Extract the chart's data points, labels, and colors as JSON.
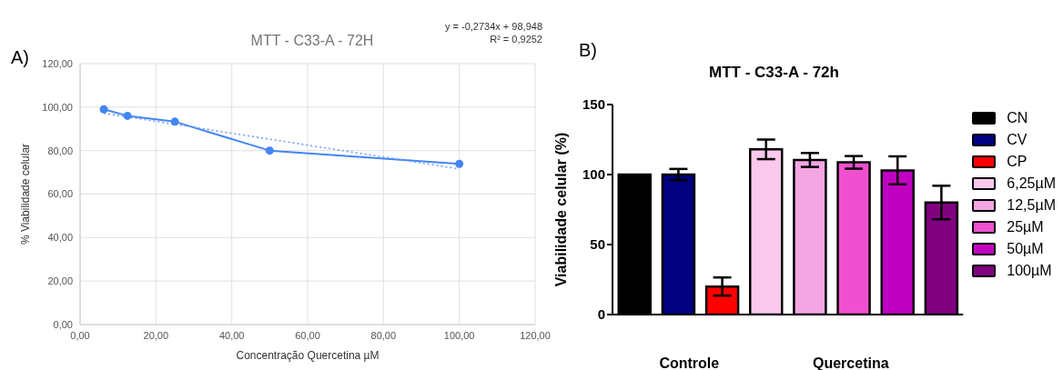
{
  "chart_data": [
    {
      "type": "line",
      "title": "MTT - C33-A - 72H",
      "xlabel": "Concentração Quercetina µM",
      "ylabel": "% Viabilidade celular",
      "annotations": [
        "A)",
        "y = -0,2734x + 98,948",
        "R² = 0,9252"
      ],
      "xlim": [
        0,
        120
      ],
      "ylim": [
        0,
        120
      ],
      "xticks": [
        {
          "value": 0,
          "label": "0,00"
        },
        {
          "value": 20,
          "label": "20,00"
        },
        {
          "value": 40,
          "label": "40,00"
        },
        {
          "value": 60,
          "label": "60,00"
        },
        {
          "value": 80,
          "label": "80,00"
        },
        {
          "value": 100,
          "label": "100,00"
        },
        {
          "value": 120,
          "label": "120,00"
        }
      ],
      "yticks": [
        {
          "value": 0,
          "label": "0,00"
        },
        {
          "value": 20,
          "label": "20,00"
        },
        {
          "value": 40,
          "label": "40,00"
        },
        {
          "value": 60,
          "label": "60,00"
        },
        {
          "value": 80,
          "label": "80,00"
        },
        {
          "value": 100,
          "label": "100,00"
        },
        {
          "value": 120,
          "label": "120,00"
        }
      ],
      "grid": true,
      "legend": false,
      "series": [
        {
          "color": "#4285f4",
          "x": [
            6.25,
            12.5,
            25,
            50,
            100
          ],
          "values": [
            99,
            96,
            93.3,
            80,
            73.9
          ],
          "marker": "circle",
          "line_style": "solid"
        },
        {
          "color": "#6d9ef8",
          "x": [
            6.25,
            100
          ],
          "values": [
            97.2,
            71.6
          ],
          "marker": "none",
          "line_style": "dotted"
        }
      ]
    },
    {
      "type": "bar",
      "title": "MTT - C33-A - 72h",
      "ylabel": "Viabilidade celular (%)",
      "annotations": [
        "B)",
        "Controle",
        "Quercetina"
      ],
      "categories": [
        null,
        null,
        null,
        null,
        null,
        null,
        null,
        null
      ],
      "ylim": [
        0,
        150
      ],
      "yticks": [
        0,
        50,
        100,
        150
      ],
      "grid": false,
      "legend": "right",
      "stacked": true,
      "tick_labels": "y",
      "series": [
        {
          "name": "CN",
          "color": "#000000",
          "values": [
            100,
            null,
            null,
            null,
            null,
            null,
            null,
            null
          ],
          "errors": [
            null,
            null,
            null,
            null,
            null,
            null,
            null,
            null
          ]
        },
        {
          "name": "CV",
          "color": "#000080",
          "values": [
            null,
            100,
            null,
            null,
            null,
            null,
            null,
            null
          ],
          "errors": [
            null,
            4,
            null,
            null,
            null,
            null,
            null,
            null
          ]
        },
        {
          "name": "CP",
          "color": "#ff0000",
          "values": [
            null,
            null,
            20,
            null,
            null,
            null,
            null,
            null
          ],
          "errors": [
            null,
            null,
            6.5,
            null,
            null,
            null,
            null,
            null
          ]
        },
        {
          "name": "6,25µM",
          "color": "#f9c8ec",
          "values": [
            null,
            null,
            null,
            118,
            null,
            null,
            null,
            null
          ],
          "errors": [
            null,
            null,
            null,
            7,
            null,
            null,
            null,
            null
          ]
        },
        {
          "name": "12,5µM",
          "color": "#f4a6e2",
          "values": [
            null,
            null,
            null,
            null,
            110.4,
            null,
            null,
            null
          ],
          "errors": [
            null,
            null,
            null,
            null,
            5,
            null,
            null,
            null
          ]
        },
        {
          "name": "25µM",
          "color": "#f050d0",
          "values": [
            null,
            null,
            null,
            null,
            null,
            108.7,
            null,
            null
          ],
          "errors": [
            null,
            null,
            null,
            null,
            null,
            4.5,
            null,
            null
          ]
        },
        {
          "name": "50µM",
          "color": "#c000c0",
          "values": [
            null,
            null,
            null,
            null,
            null,
            null,
            103,
            null
          ],
          "errors": [
            null,
            null,
            null,
            null,
            null,
            null,
            10,
            null
          ]
        },
        {
          "name": "100µM",
          "color": "#800080",
          "values": [
            null,
            null,
            null,
            null,
            null,
            null,
            null,
            80
          ],
          "errors": [
            null,
            null,
            null,
            null,
            null,
            null,
            null,
            12
          ]
        }
      ]
    }
  ]
}
